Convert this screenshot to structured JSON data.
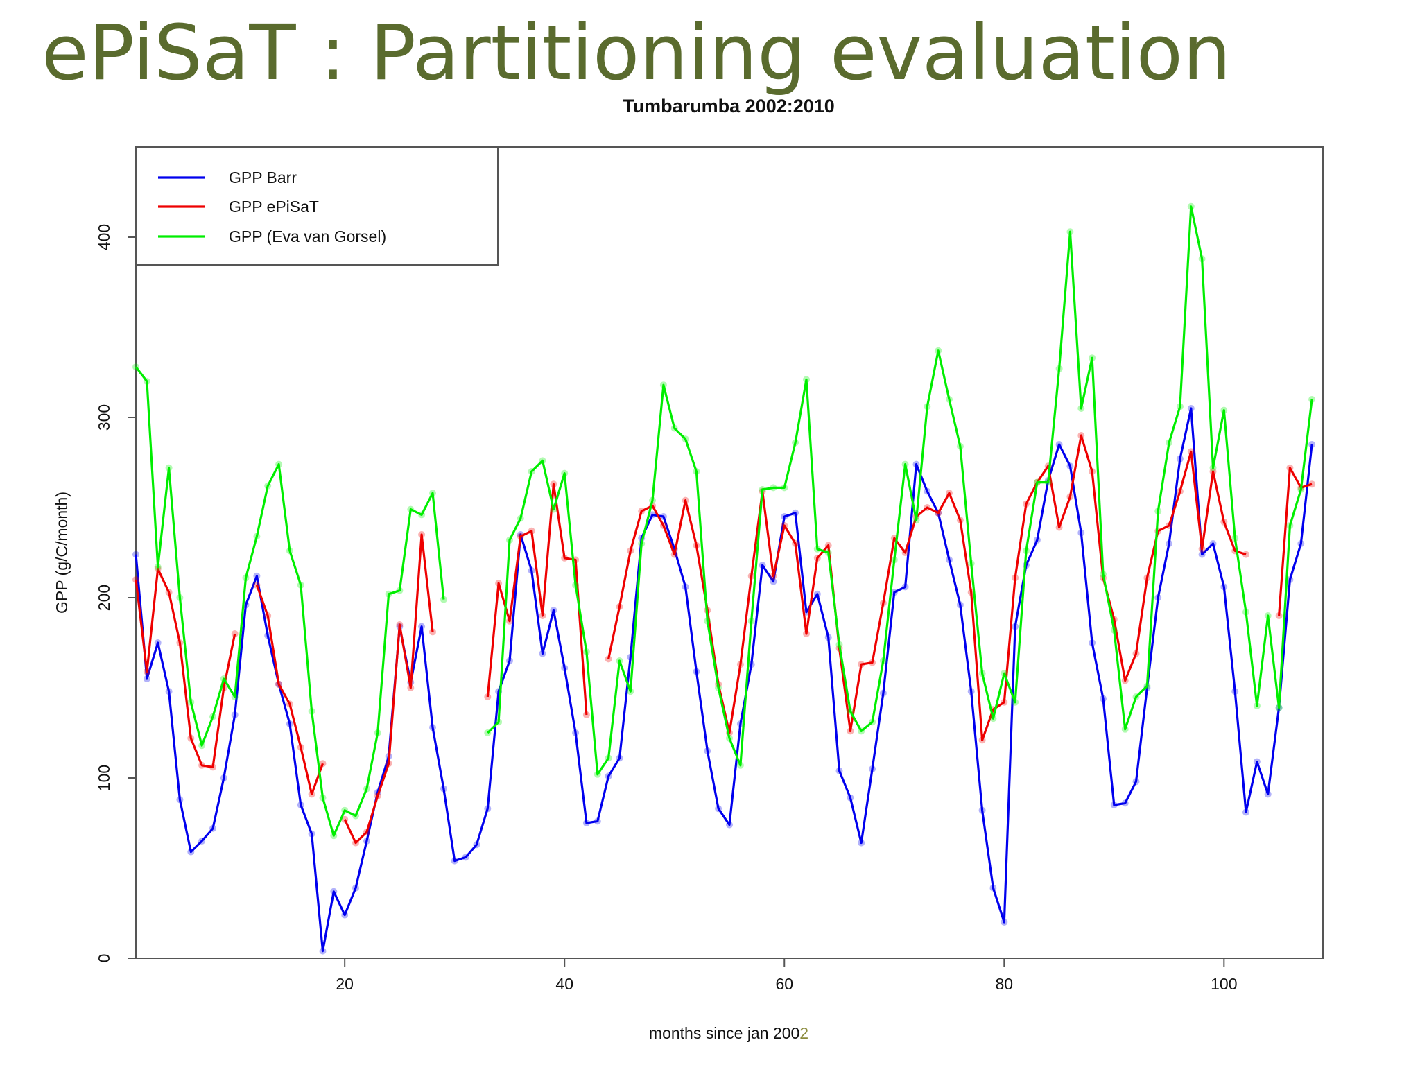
{
  "slide": {
    "title": "ePiSaT : Partitioning evaluation"
  },
  "chart_data": {
    "type": "line",
    "title": "Tumbarumba 2002:2010",
    "xlabel": "months since jan 200",
    "xlabel_accent": "2",
    "ylabel": "GPP (g/C/month)",
    "xlim": [
      1,
      109
    ],
    "ylim": [
      0,
      450
    ],
    "xticks": [
      20,
      40,
      60,
      80,
      100
    ],
    "yticks": [
      0,
      100,
      200,
      300,
      400
    ],
    "legend_position": "top-left",
    "grid": false,
    "series": [
      {
        "name": "GPP Barr",
        "color": "#0000ee",
        "points": [
          [
            1,
            224
          ],
          [
            2,
            155
          ],
          [
            3,
            175
          ],
          [
            4,
            148
          ],
          [
            5,
            88
          ],
          [
            6,
            59
          ],
          [
            7,
            65
          ],
          [
            8,
            72
          ],
          [
            9,
            100
          ],
          [
            10,
            135
          ],
          [
            11,
            196
          ],
          [
            12,
            212
          ],
          [
            13,
            179
          ],
          [
            14,
            152
          ],
          [
            15,
            130
          ],
          [
            16,
            85
          ],
          [
            17,
            69
          ],
          [
            18,
            4
          ],
          [
            19,
            37
          ],
          [
            20,
            24
          ],
          [
            21,
            39
          ],
          [
            22,
            65
          ],
          [
            23,
            92
          ],
          [
            24,
            112
          ],
          [
            25,
            184
          ],
          [
            26,
            153
          ],
          [
            27,
            184
          ],
          [
            28,
            128
          ],
          [
            29,
            94
          ],
          [
            30,
            54
          ],
          [
            31,
            56
          ],
          [
            32,
            63
          ],
          [
            33,
            83
          ],
          [
            34,
            148
          ],
          [
            35,
            165
          ],
          [
            36,
            235
          ],
          [
            37,
            215
          ],
          [
            38,
            169
          ],
          [
            39,
            193
          ],
          [
            40,
            161
          ],
          [
            41,
            125
          ],
          [
            42,
            75
          ],
          [
            43,
            76
          ],
          [
            44,
            101
          ],
          [
            45,
            111
          ],
          [
            46,
            167
          ],
          [
            47,
            233
          ],
          [
            48,
            246
          ],
          [
            49,
            245
          ],
          [
            50,
            227
          ],
          [
            51,
            206
          ],
          [
            52,
            159
          ],
          [
            53,
            115
          ],
          [
            54,
            83
          ],
          [
            55,
            74
          ],
          [
            56,
            130
          ],
          [
            57,
            163
          ],
          [
            58,
            218
          ],
          [
            59,
            209
          ],
          [
            60,
            245
          ],
          [
            61,
            247
          ],
          [
            62,
            192
          ],
          [
            63,
            202
          ],
          [
            64,
            178
          ],
          [
            65,
            104
          ],
          [
            66,
            89
          ],
          [
            67,
            64
          ],
          [
            68,
            105
          ],
          [
            69,
            147
          ],
          [
            70,
            203
          ],
          [
            71,
            206
          ],
          [
            72,
            274
          ],
          [
            73,
            259
          ],
          [
            74,
            247
          ],
          [
            75,
            221
          ],
          [
            76,
            196
          ],
          [
            77,
            148
          ],
          [
            78,
            82
          ],
          [
            79,
            39
          ],
          [
            80,
            20
          ],
          [
            81,
            184
          ],
          [
            82,
            218
          ],
          [
            83,
            232
          ],
          [
            84,
            265
          ],
          [
            85,
            285
          ],
          [
            86,
            273
          ],
          [
            87,
            236
          ],
          [
            88,
            175
          ],
          [
            89,
            144
          ],
          [
            90,
            85
          ],
          [
            91,
            86
          ],
          [
            92,
            98
          ],
          [
            93,
            150
          ],
          [
            94,
            200
          ],
          [
            95,
            230
          ],
          [
            96,
            277
          ],
          [
            97,
            305
          ],
          [
            98,
            224
          ],
          [
            99,
            230
          ],
          [
            100,
            206
          ],
          [
            101,
            148
          ],
          [
            102,
            81
          ],
          [
            103,
            109
          ],
          [
            104,
            91
          ],
          [
            105,
            139
          ],
          [
            106,
            210
          ],
          [
            107,
            230
          ],
          [
            108,
            285
          ]
        ]
      },
      {
        "name": "GPP ePiSaT",
        "color": "#ee0000",
        "points": [
          [
            1,
            210
          ],
          [
            2,
            159
          ],
          [
            3,
            216
          ],
          [
            4,
            203
          ],
          [
            5,
            175
          ],
          [
            6,
            122
          ],
          [
            7,
            107
          ],
          [
            8,
            106
          ],
          [
            9,
            150
          ],
          [
            10,
            180
          ],
          [
            null,
            null
          ],
          [
            12,
            207
          ],
          [
            13,
            190
          ],
          [
            14,
            152
          ],
          [
            15,
            141
          ],
          [
            16,
            117
          ],
          [
            17,
            91
          ],
          [
            18,
            108
          ],
          [
            null,
            null
          ],
          [
            20,
            77
          ],
          [
            21,
            64
          ],
          [
            22,
            70
          ],
          [
            23,
            90
          ],
          [
            24,
            108
          ],
          [
            25,
            185
          ],
          [
            26,
            150
          ],
          [
            27,
            235
          ],
          [
            28,
            181
          ],
          [
            null,
            null
          ],
          [
            33,
            145
          ],
          [
            34,
            208
          ],
          [
            35,
            187
          ],
          [
            36,
            234
          ],
          [
            37,
            237
          ],
          [
            38,
            190
          ],
          [
            39,
            263
          ],
          [
            40,
            222
          ],
          [
            41,
            221
          ],
          [
            42,
            135
          ],
          [
            null,
            null
          ],
          [
            44,
            166
          ],
          [
            45,
            195
          ],
          [
            46,
            226
          ],
          [
            47,
            248
          ],
          [
            48,
            251
          ],
          [
            49,
            240
          ],
          [
            50,
            224
          ],
          [
            51,
            254
          ],
          [
            52,
            229
          ],
          [
            53,
            193
          ],
          [
            54,
            152
          ],
          [
            55,
            125
          ],
          [
            56,
            163
          ],
          [
            57,
            212
          ],
          [
            58,
            259
          ],
          [
            59,
            212
          ],
          [
            60,
            240
          ],
          [
            61,
            230
          ],
          [
            62,
            180
          ],
          [
            63,
            222
          ],
          [
            64,
            229
          ],
          [
            65,
            172
          ],
          [
            66,
            126
          ],
          [
            67,
            163
          ],
          [
            68,
            164
          ],
          [
            69,
            197
          ],
          [
            70,
            233
          ],
          [
            71,
            225
          ],
          [
            72,
            245
          ],
          [
            73,
            250
          ],
          [
            74,
            247
          ],
          [
            75,
            258
          ],
          [
            76,
            243
          ],
          [
            77,
            203
          ],
          [
            78,
            121
          ],
          [
            79,
            138
          ],
          [
            80,
            142
          ],
          [
            81,
            211
          ],
          [
            82,
            252
          ],
          [
            83,
            264
          ],
          [
            84,
            273
          ],
          [
            85,
            239
          ],
          [
            86,
            256
          ],
          [
            87,
            290
          ],
          [
            88,
            270
          ],
          [
            89,
            211
          ],
          [
            90,
            188
          ],
          [
            91,
            154
          ],
          [
            92,
            169
          ],
          [
            93,
            211
          ],
          [
            94,
            237
          ],
          [
            95,
            240
          ],
          [
            96,
            259
          ],
          [
            97,
            281
          ],
          [
            98,
            227
          ],
          [
            99,
            270
          ],
          [
            100,
            242
          ],
          [
            101,
            226
          ],
          [
            102,
            224
          ],
          [
            null,
            null
          ],
          [
            105,
            190
          ],
          [
            106,
            272
          ],
          [
            107,
            261
          ],
          [
            108,
            263
          ]
        ]
      },
      {
        "name": "GPP (Eva van Gorsel)",
        "color": "#00ee00",
        "points": [
          [
            1,
            328
          ],
          [
            2,
            320
          ],
          [
            3,
            217
          ],
          [
            4,
            272
          ],
          [
            5,
            200
          ],
          [
            6,
            142
          ],
          [
            7,
            118
          ],
          [
            8,
            134
          ],
          [
            9,
            155
          ],
          [
            10,
            145
          ],
          [
            11,
            211
          ],
          [
            12,
            234
          ],
          [
            13,
            262
          ],
          [
            14,
            274
          ],
          [
            15,
            226
          ],
          [
            16,
            207
          ],
          [
            17,
            137
          ],
          [
            18,
            89
          ],
          [
            19,
            68
          ],
          [
            20,
            82
          ],
          [
            21,
            79
          ],
          [
            22,
            94
          ],
          [
            23,
            125
          ],
          [
            24,
            202
          ],
          [
            25,
            204
          ],
          [
            26,
            249
          ],
          [
            27,
            246
          ],
          [
            28,
            258
          ],
          [
            29,
            199
          ],
          [
            null,
            null
          ],
          [
            33,
            125
          ],
          [
            34,
            131
          ],
          [
            35,
            232
          ],
          [
            36,
            244
          ],
          [
            37,
            270
          ],
          [
            38,
            276
          ],
          [
            39,
            249
          ],
          [
            40,
            269
          ],
          [
            41,
            207
          ],
          [
            42,
            170
          ],
          [
            43,
            102
          ],
          [
            44,
            111
          ],
          [
            45,
            165
          ],
          [
            46,
            148
          ],
          [
            47,
            230
          ],
          [
            48,
            254
          ],
          [
            49,
            318
          ],
          [
            50,
            294
          ],
          [
            51,
            288
          ],
          [
            52,
            270
          ],
          [
            53,
            187
          ],
          [
            54,
            150
          ],
          [
            55,
            122
          ],
          [
            56,
            107
          ],
          [
            57,
            187
          ],
          [
            58,
            260
          ],
          [
            59,
            261
          ],
          [
            60,
            261
          ],
          [
            61,
            286
          ],
          [
            62,
            321
          ],
          [
            63,
            227
          ],
          [
            64,
            225
          ],
          [
            65,
            174
          ],
          [
            66,
            137
          ],
          [
            67,
            126
          ],
          [
            68,
            131
          ],
          [
            69,
            165
          ],
          [
            70,
            221
          ],
          [
            71,
            274
          ],
          [
            72,
            243
          ],
          [
            73,
            306
          ],
          [
            74,
            337
          ],
          [
            75,
            310
          ],
          [
            76,
            284
          ],
          [
            77,
            219
          ],
          [
            78,
            158
          ],
          [
            79,
            133
          ],
          [
            80,
            158
          ],
          [
            81,
            142
          ],
          [
            82,
            226
          ],
          [
            83,
            264
          ],
          [
            84,
            264
          ],
          [
            85,
            327
          ],
          [
            86,
            403
          ],
          [
            87,
            305
          ],
          [
            88,
            333
          ],
          [
            89,
            213
          ],
          [
            90,
            182
          ],
          [
            91,
            127
          ],
          [
            92,
            145
          ],
          [
            93,
            151
          ],
          [
            94,
            248
          ],
          [
            95,
            286
          ],
          [
            96,
            306
          ],
          [
            97,
            417
          ],
          [
            98,
            388
          ],
          [
            99,
            272
          ],
          [
            100,
            304
          ],
          [
            101,
            233
          ],
          [
            102,
            192
          ],
          [
            103,
            140
          ],
          [
            104,
            190
          ],
          [
            105,
            139
          ],
          [
            106,
            240
          ],
          [
            107,
            260
          ],
          [
            108,
            310
          ]
        ]
      }
    ]
  }
}
